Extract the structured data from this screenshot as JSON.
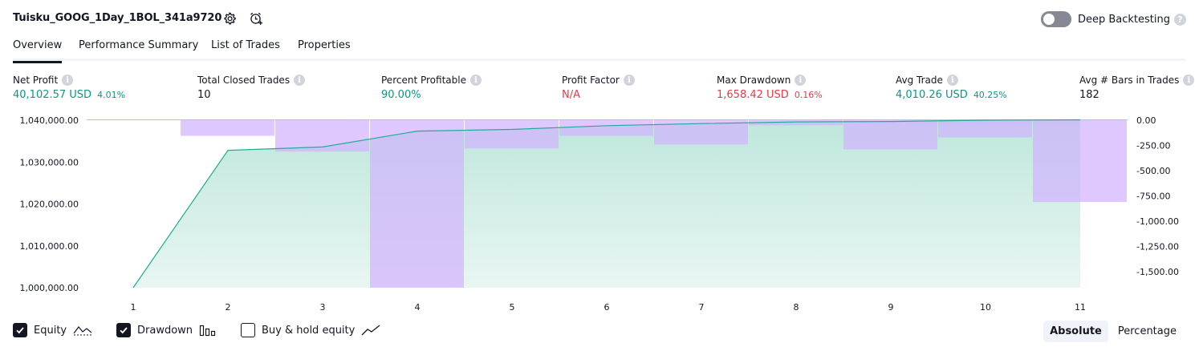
{
  "header": {
    "strategy_name": "Tuisku_GOOG_1Day_1BOL_341a9720",
    "icons": [
      "settings-icon",
      "add-alert-icon"
    ],
    "deep_backtesting_label": "Deep Backtesting",
    "deep_backtesting_enabled": false,
    "help_glyph": "?"
  },
  "tabs": [
    {
      "label": "Overview",
      "active": true
    },
    {
      "label": "Performance Summary",
      "active": false
    },
    {
      "label": "List of Trades",
      "active": false
    },
    {
      "label": "Properties",
      "active": false
    }
  ],
  "metrics": [
    {
      "label": "Net Profit",
      "value": "40,102.57 USD",
      "pct": "4.01%",
      "color": "#089981"
    },
    {
      "label": "Total Closed Trades",
      "value": "10",
      "pct": "",
      "color": "#131722"
    },
    {
      "label": "Percent Profitable",
      "value": "90.00%",
      "pct": "",
      "color": "#089981"
    },
    {
      "label": "Profit Factor",
      "value": "N/A",
      "pct": "",
      "color": "#f23645"
    },
    {
      "label": "Max Drawdown",
      "value": "1,658.42 USD",
      "pct": "0.16%",
      "color": "#f23645"
    },
    {
      "label": "Avg Trade",
      "value": "4,010.26 USD",
      "pct": "40.25%",
      "color": "#089981"
    },
    {
      "label": "Avg # Bars in Trades",
      "value": "182",
      "pct": "",
      "color": "#131722"
    }
  ],
  "info_glyph": "i",
  "chart_data": {
    "type": "area",
    "x": [
      1,
      2,
      3,
      4,
      5,
      6,
      7,
      8,
      9,
      10,
      11
    ],
    "left_axis_ticks": [
      "1,040,000.00",
      "1,030,000.00",
      "1,020,000.00",
      "1,010,000.00",
      "1,000,000.00"
    ],
    "right_axis_ticks": [
      "0.00",
      "-250.00",
      "-500.00",
      "-750.00",
      "-1,000.00",
      "-1,250.00",
      "-1,500.00"
    ],
    "left_ylim": [
      1000000,
      1040000
    ],
    "right_ylim": [
      -1658.42,
      0
    ],
    "series": [
      {
        "name": "Equity",
        "axis": "left",
        "kind": "area",
        "color": "#22ab94",
        "values": [
          1000000,
          1032800,
          1033600,
          1037400,
          1037800,
          1038700,
          1039200,
          1039600,
          1039700,
          1040000,
          1040102.57
        ]
      },
      {
        "name": "Drawdown",
        "axis": "right",
        "kind": "bar",
        "color": "#d1b3ff",
        "values": [
          0,
          -155,
          -310,
          -1658.42,
          -280,
          -155,
          -240,
          -50,
          -290,
          -170,
          -810
        ]
      }
    ],
    "baseline_line": {
      "axis": "left",
      "value": 1040102.57,
      "color": "#e9a6e0"
    }
  },
  "legend": [
    {
      "label": "Equity",
      "checked": true,
      "icon": "equity-line-icon"
    },
    {
      "label": "Drawdown",
      "checked": true,
      "icon": "drawdown-bars-icon"
    },
    {
      "label": "Buy & hold equity",
      "checked": false,
      "icon": "buyhold-line-icon"
    }
  ],
  "modes": [
    {
      "label": "Absolute",
      "active": true
    },
    {
      "label": "Percentage",
      "active": false
    }
  ]
}
